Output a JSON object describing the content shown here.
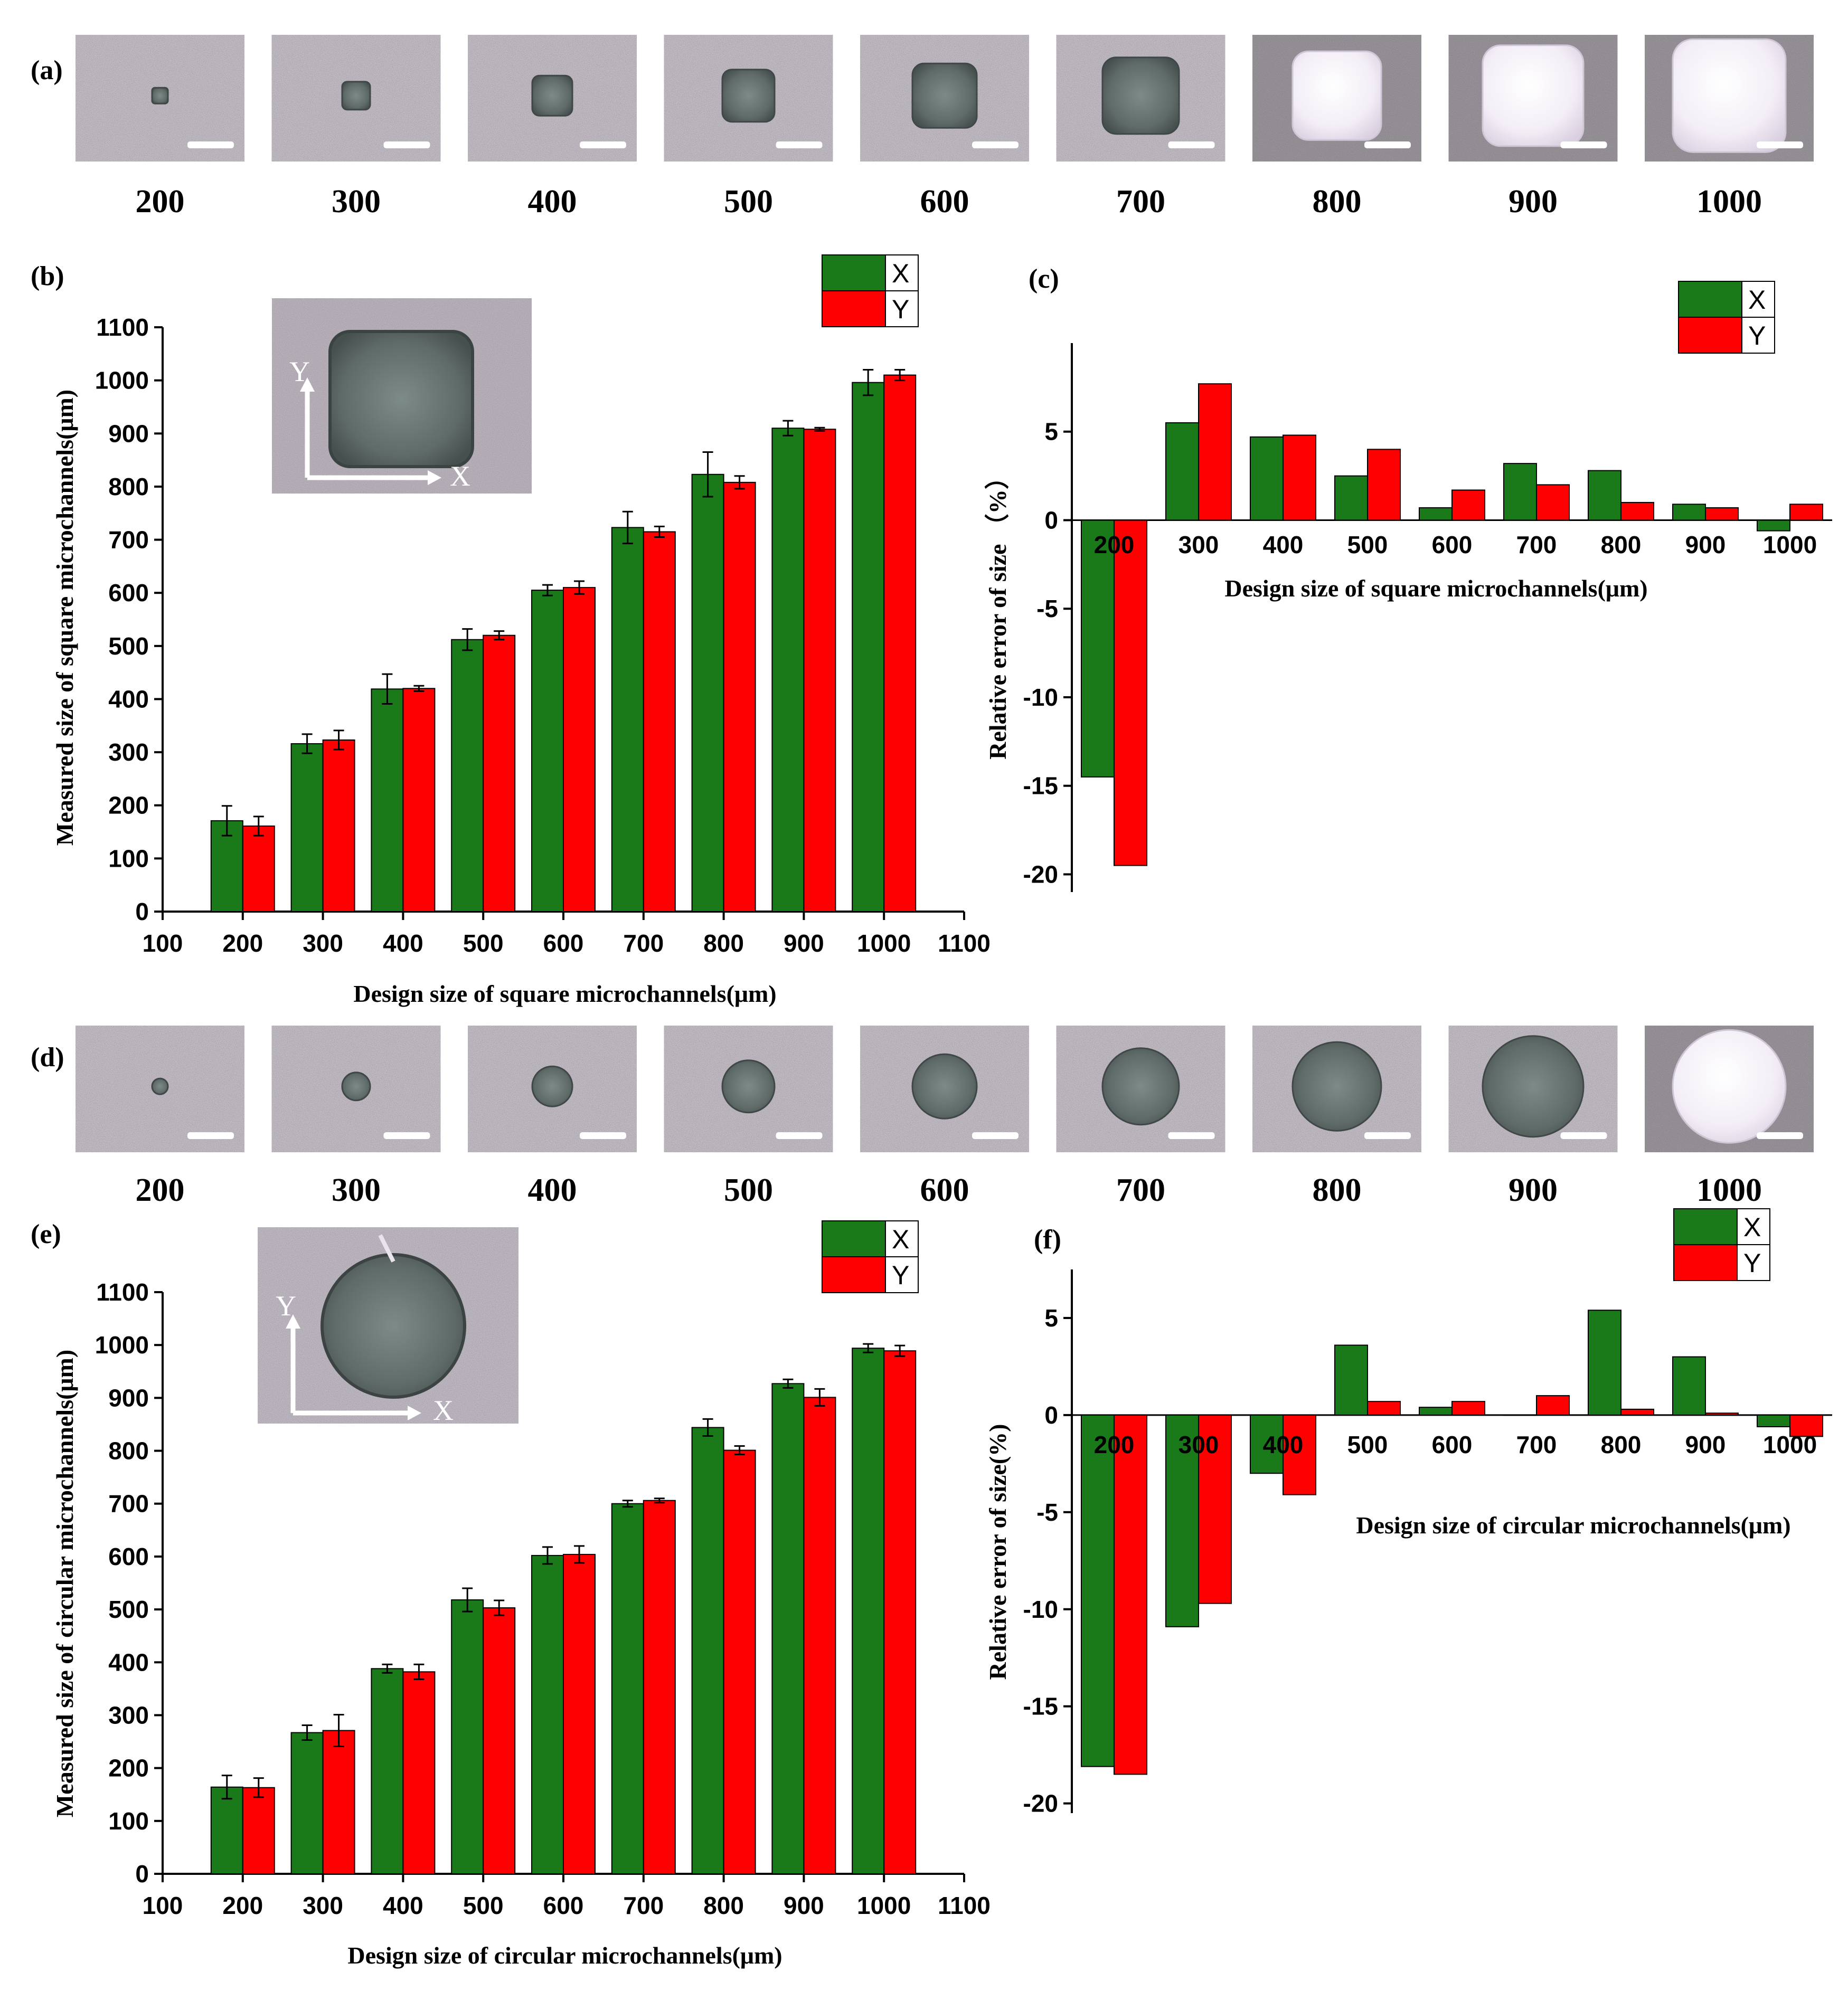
{
  "panel_labels": {
    "a": "(a)",
    "b": "(b)",
    "c": "(c)",
    "d": "(d)",
    "e": "(e)",
    "f": "(f)"
  },
  "colors": {
    "X": "#1a7a1a",
    "Y": "#ff0000"
  },
  "micrograph_captions": {
    "square": [
      "200",
      "300",
      "400",
      "500",
      "600",
      "700",
      "800",
      "900",
      "1000"
    ],
    "circular": [
      "200",
      "300",
      "400",
      "500",
      "600",
      "700",
      "800",
      "900",
      "1000"
    ]
  },
  "inset_axes": {
    "x": "X",
    "y": "Y"
  },
  "chart_data": [
    {
      "id": "b",
      "type": "bar",
      "categories": [
        "200",
        "300",
        "400",
        "500",
        "600",
        "700",
        "800",
        "900",
        "1000"
      ],
      "x_ticks": [
        "100",
        "200",
        "300",
        "400",
        "500",
        "600",
        "700",
        "800",
        "900",
        "1000",
        "1100"
      ],
      "series": [
        {
          "name": "X",
          "values": [
            171,
            316,
            419,
            512,
            605,
            723,
            823,
            910,
            996
          ],
          "errors": [
            28,
            18,
            28,
            20,
            10,
            30,
            42,
            14,
            24
          ]
        },
        {
          "name": "Y",
          "values": [
            161,
            323,
            420,
            520,
            610,
            715,
            808,
            908,
            1010
          ],
          "errors": [
            18,
            18,
            5,
            8,
            12,
            10,
            12,
            3,
            10
          ]
        }
      ],
      "xlabel": "Design size of square microchannels(μm)",
      "ylabel": "Measured size of square microchannels(μm)",
      "ylim": [
        0,
        1100
      ],
      "yticks": [
        0,
        100,
        200,
        300,
        400,
        500,
        600,
        700,
        800,
        900,
        1000,
        1100
      ],
      "legend": "top-right"
    },
    {
      "id": "c",
      "type": "bar",
      "categories": [
        "200",
        "300",
        "400",
        "500",
        "600",
        "700",
        "800",
        "900",
        "1000"
      ],
      "series": [
        {
          "name": "X",
          "values": [
            -14.5,
            5.5,
            4.7,
            2.5,
            0.7,
            3.2,
            2.8,
            0.9,
            -0.6
          ]
        },
        {
          "name": "Y",
          "values": [
            -19.5,
            7.7,
            4.8,
            4.0,
            1.7,
            2.0,
            1.0,
            0.7,
            0.9
          ]
        }
      ],
      "xlabel": "Design size of square microchannels(μm)",
      "ylabel": "Relative error of size （%）",
      "ylim": [
        -21,
        10
      ],
      "yticks": [
        -20,
        -15,
        -10,
        -5,
        0,
        5
      ],
      "legend": "top-right"
    },
    {
      "id": "e",
      "type": "bar",
      "categories": [
        "200",
        "300",
        "400",
        "500",
        "600",
        "700",
        "800",
        "900",
        "1000"
      ],
      "x_ticks": [
        "100",
        "200",
        "300",
        "400",
        "500",
        "600",
        "700",
        "800",
        "900",
        "1000",
        "1100"
      ],
      "series": [
        {
          "name": "X",
          "values": [
            164,
            267,
            388,
            518,
            602,
            700,
            844,
            927,
            994
          ],
          "errors": [
            22,
            14,
            8,
            22,
            16,
            6,
            16,
            8,
            8
          ]
        },
        {
          "name": "Y",
          "values": [
            163,
            271,
            382,
            503,
            604,
            706,
            801,
            901,
            989
          ],
          "errors": [
            18,
            30,
            14,
            14,
            16,
            4,
            8,
            16,
            10
          ]
        }
      ],
      "xlabel": "Design size of circular microchannels(μm)",
      "ylabel": "Measured size of circular microchannels(μm)",
      "ylim": [
        0,
        1100
      ],
      "yticks": [
        0,
        100,
        200,
        300,
        400,
        500,
        600,
        700,
        800,
        900,
        1000,
        1100
      ],
      "legend": "top-right"
    },
    {
      "id": "f",
      "type": "bar",
      "categories": [
        "200",
        "300",
        "400",
        "500",
        "600",
        "700",
        "800",
        "900",
        "1000"
      ],
      "series": [
        {
          "name": "X",
          "values": [
            -18.1,
            -10.9,
            -3.0,
            3.6,
            0.4,
            0.0,
            5.4,
            3.0,
            -0.6
          ]
        },
        {
          "name": "Y",
          "values": [
            -18.5,
            -9.7,
            -4.1,
            0.7,
            0.7,
            1.0,
            0.3,
            0.1,
            -1.1
          ]
        }
      ],
      "xlabel": "Design size of circular microchannels(μm)",
      "ylabel": "Relative error of size(%)",
      "ylim": [
        -20.5,
        7.5
      ],
      "yticks": [
        -20,
        -15,
        -10,
        -5,
        0,
        5
      ],
      "legend": "top-right"
    }
  ]
}
